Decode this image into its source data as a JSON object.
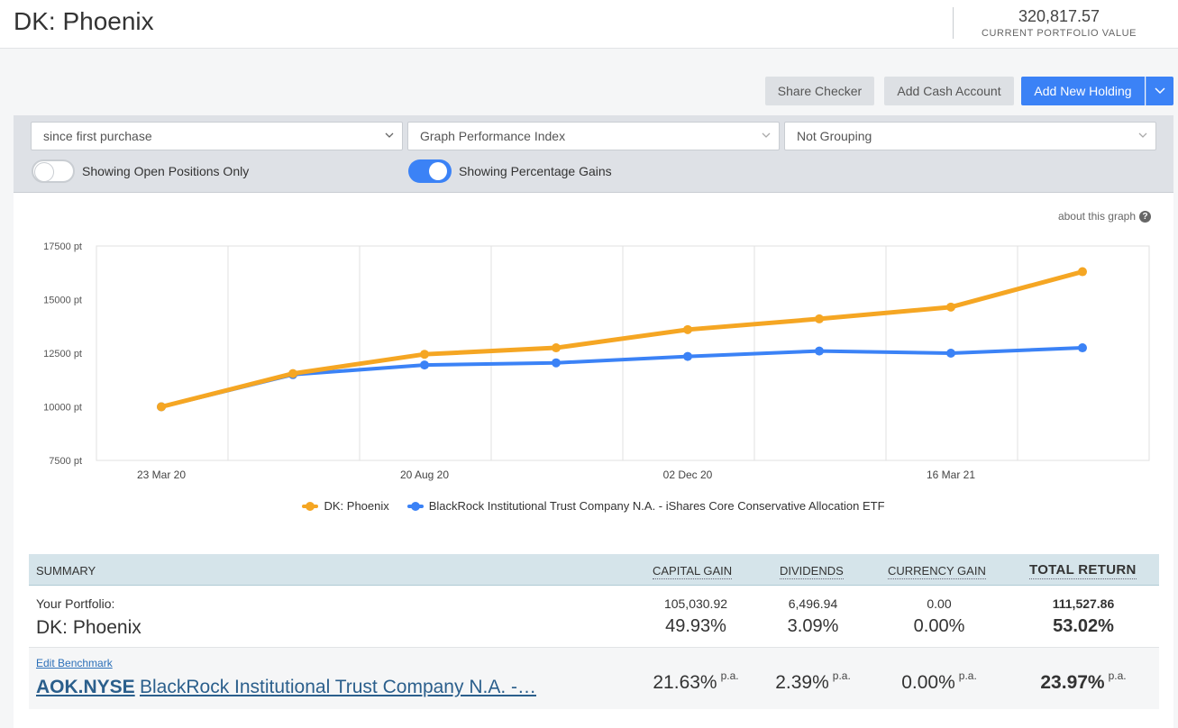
{
  "header": {
    "title": "DK: Phoenix",
    "portfolio_value": "320,817.57",
    "portfolio_value_label": "CURRENT PORTFOLIO VALUE"
  },
  "toolbar": {
    "share_checker": "Share Checker",
    "add_cash_account": "Add Cash Account",
    "add_new_holding": "Add New Holding"
  },
  "filters": {
    "period": "since first purchase",
    "graph_type": "Graph Performance Index",
    "grouping": "Not Grouping",
    "open_positions_label": "Showing Open Positions Only",
    "open_positions_on": false,
    "percentage_gains_label": "Showing Percentage Gains",
    "percentage_gains_on": true
  },
  "chart": {
    "about_link": "about this graph",
    "colors": {
      "portfolio": "#f5a623",
      "benchmark": "#3b82f6",
      "grid": "#e0e0e0"
    }
  },
  "chart_data": {
    "type": "line",
    "y_ticks": [
      "17500 pt",
      "15000 pt",
      "12500 pt",
      "10000 pt",
      "7500 pt"
    ],
    "ylim": [
      7500,
      17500
    ],
    "x_ticks": [
      "23 Mar 20",
      "20 Aug 20",
      "02 Dec 20",
      "16 Mar 21"
    ],
    "series": [
      {
        "name": "DK: Phoenix",
        "values": [
          10000,
          11550,
          12450,
          12750,
          13600,
          14100,
          14650,
          16300
        ]
      },
      {
        "name": "BlackRock Institutional Trust Company N.A. - iShares Core Conservative Allocation ETF",
        "values": [
          10000,
          11500,
          11950,
          12050,
          12350,
          12600,
          12500,
          12750
        ]
      }
    ],
    "grid": true,
    "legend": "bottom-center"
  },
  "summary": {
    "headers": {
      "summary": "SUMMARY",
      "capital_gain": "CAPITAL GAIN",
      "dividends": "DIVIDENDS",
      "currency_gain": "CURRENCY GAIN",
      "total_return": "TOTAL RETURN"
    },
    "portfolio": {
      "label": "Your Portfolio:",
      "name": "DK: Phoenix",
      "capital_gain_amount": "105,030.92",
      "capital_gain_pct": "49.93%",
      "dividends_amount": "6,496.94",
      "dividends_pct": "3.09%",
      "currency_gain_amount": "0.00",
      "currency_gain_pct": "0.00%",
      "total_amount": "111,527.86",
      "total_pct": "53.02%"
    },
    "benchmark": {
      "edit_label": "Edit Benchmark",
      "code": "AOK.NYSE",
      "name": "BlackRock Institutional Trust Company N.A. -…",
      "capital_gain_pct": "21.63%",
      "dividends_pct": "2.39%",
      "currency_gain_pct": "0.00%",
      "total_pct": "23.97%",
      "pa": "p.a."
    }
  }
}
